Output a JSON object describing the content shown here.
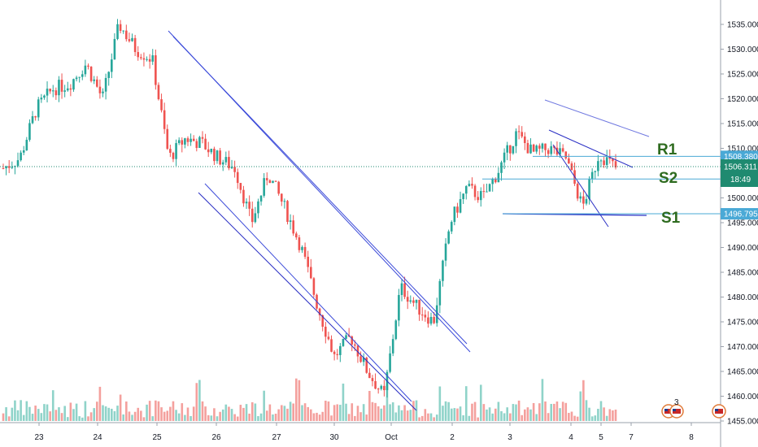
{
  "chart_data": {
    "type": "candlestick",
    "title": "",
    "ylim": [
      1455,
      1538
    ],
    "y_ticks": [
      "1535.000",
      "1530.000",
      "1525.000",
      "1520.000",
      "1515.000",
      "1510.000",
      "1505.000",
      "1500.000",
      "1495.000",
      "1490.000",
      "1485.000",
      "1480.000",
      "1475.000",
      "1470.000",
      "1465.000",
      "1460.000",
      "1455.000"
    ],
    "x_ticks": [
      "23",
      "24",
      "25",
      "26",
      "27",
      "30",
      "Oct",
      "2",
      "3",
      "4",
      "5",
      "7",
      "8"
    ],
    "colors": {
      "up": "#26a69a",
      "down": "#ef5350",
      "up_volume": "#8fd3c9",
      "down_volume": "#f4a09d",
      "channel": "#3b4ad9",
      "level": "#4aa9d6",
      "current_price": "#1f8a70"
    },
    "current_price": {
      "label": "1506.311",
      "value": 1506.311,
      "countdown": "18:49"
    },
    "levels": [
      {
        "name": "R1",
        "value": 1508.38,
        "label": "1508.380",
        "tag_color": "#4aa9d6"
      },
      {
        "name": "S2",
        "value": 1503.818,
        "label": "1503.818",
        "tag_color": "#4aa9d6"
      },
      {
        "name": "S1",
        "value": 1496.795,
        "label": "1496.795",
        "tag_color": "#4aa9d6"
      }
    ],
    "annotations": [
      "R1",
      "S2",
      "S1"
    ],
    "event_badge": "3",
    "price_path": [
      [
        0,
        1506
      ],
      [
        1,
        1508
      ],
      [
        2,
        1518
      ],
      [
        3,
        1522
      ],
      [
        4,
        1523
      ],
      [
        5,
        1527
      ],
      [
        6,
        1520
      ],
      [
        7,
        1535
      ],
      [
        8,
        1530
      ],
      [
        9,
        1528
      ],
      [
        10,
        1508
      ],
      [
        11,
        1512
      ],
      [
        12,
        1511
      ],
      [
        13,
        1508
      ],
      [
        14,
        1506
      ],
      [
        15,
        1495
      ],
      [
        16,
        1505
      ],
      [
        17,
        1498
      ],
      [
        18,
        1490
      ],
      [
        19,
        1478
      ],
      [
        20,
        1468
      ],
      [
        21,
        1472
      ],
      [
        22,
        1465
      ],
      [
        23,
        1460
      ],
      [
        24,
        1482
      ],
      [
        25,
        1478
      ],
      [
        26,
        1475
      ],
      [
        27,
        1495
      ],
      [
        28,
        1502
      ],
      [
        29,
        1500
      ],
      [
        30,
        1506
      ],
      [
        31,
        1513
      ],
      [
        32,
        1509
      ],
      [
        33,
        1510
      ],
      [
        34,
        1508
      ],
      [
        35,
        1498
      ],
      [
        36,
        1509
      ],
      [
        37,
        1506
      ]
    ]
  }
}
